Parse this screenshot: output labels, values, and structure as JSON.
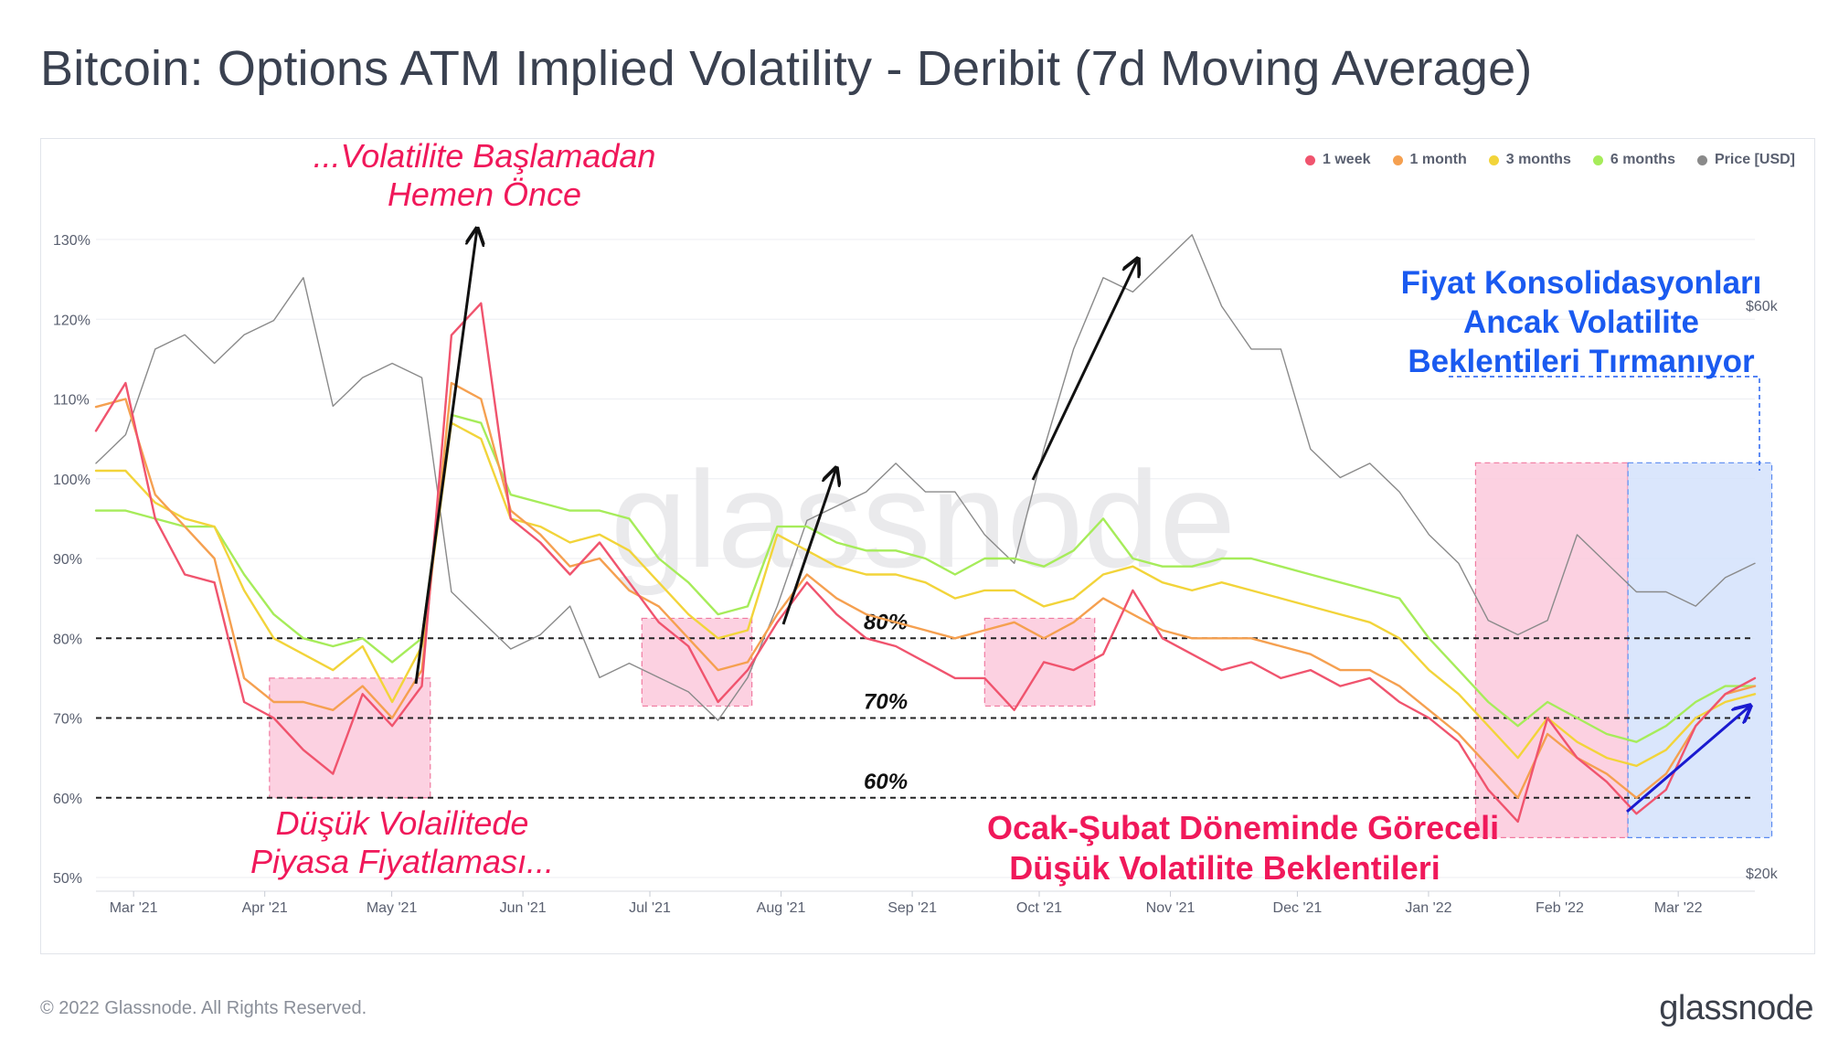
{
  "title": "Bitcoin: Options ATM Implied Volatility - Deribit (7d Moving Average)",
  "footer": {
    "copyright": "© 2022 Glassnode. All Rights Reserved.",
    "logo": "glassnode"
  },
  "watermark": "glassnode",
  "legend": [
    {
      "label": "1 week",
      "color": "#f0546e"
    },
    {
      "label": "1 month",
      "color": "#f5a050"
    },
    {
      "label": "3 months",
      "color": "#f2d43a"
    },
    {
      "label": "6 months",
      "color": "#a6ec5a"
    },
    {
      "label": "Price [USD]",
      "color": "#8a8a8a"
    }
  ],
  "annotations": {
    "top": [
      "...Volatilite Başlamadan",
      "Hemen Önce"
    ],
    "bottom_left": [
      "Düşük Volailitede",
      "Piyasa Fiyatlaması..."
    ],
    "bottom_right": [
      "Ocak-Şubat Döneminde Göreceli",
      "Düşük Volatilite Beklentileri"
    ],
    "top_right": [
      "Fiyat Konsolidasyonları",
      "Ancak Volatilite",
      "Beklentileri Tırmanıyor"
    ],
    "level_labels": [
      "80%",
      "70%",
      "60%"
    ]
  },
  "chart_data": {
    "type": "line",
    "x_ticks": [
      "Mar '21",
      "Apr '21",
      "May '21",
      "Jun '21",
      "Jul '21",
      "Aug '21",
      "Sep '21",
      "Oct '21",
      "Nov '21",
      "Dec '21",
      "Jan '22",
      "Feb '22",
      "Mar '22"
    ],
    "y_left_ticks": [
      "50%",
      "60%",
      "70%",
      "80%",
      "90%",
      "100%",
      "110%",
      "120%",
      "130%"
    ],
    "y_left_range": [
      50,
      130
    ],
    "y_right_ticks": [
      "$20k",
      "$60k"
    ],
    "reference_levels": [
      80,
      70,
      60
    ],
    "dates": [
      "2021-02-24",
      "2021-03-03",
      "2021-03-10",
      "2021-03-17",
      "2021-03-24",
      "2021-03-31",
      "2021-04-07",
      "2021-04-14",
      "2021-04-21",
      "2021-04-28",
      "2021-05-05",
      "2021-05-12",
      "2021-05-19",
      "2021-05-26",
      "2021-06-02",
      "2021-06-09",
      "2021-06-16",
      "2021-06-23",
      "2021-06-30",
      "2021-07-07",
      "2021-07-14",
      "2021-07-21",
      "2021-07-28",
      "2021-08-04",
      "2021-08-11",
      "2021-08-18",
      "2021-08-25",
      "2021-09-01",
      "2021-09-08",
      "2021-09-15",
      "2021-09-22",
      "2021-09-29",
      "2021-10-06",
      "2021-10-13",
      "2021-10-20",
      "2021-10-27",
      "2021-11-03",
      "2021-11-10",
      "2021-11-17",
      "2021-11-24",
      "2021-12-01",
      "2021-12-08",
      "2021-12-15",
      "2021-12-22",
      "2021-12-29",
      "2022-01-05",
      "2022-01-12",
      "2022-01-19",
      "2022-01-26",
      "2022-02-02",
      "2022-02-09",
      "2022-02-16",
      "2022-02-23",
      "2022-03-02",
      "2022-03-09",
      "2022-03-16",
      "2022-03-23"
    ],
    "series": [
      {
        "name": "1 week",
        "values": [
          106,
          112,
          95,
          88,
          87,
          72,
          70,
          66,
          63,
          73,
          69,
          74,
          118,
          122,
          95,
          92,
          88,
          92,
          87,
          82,
          79,
          72,
          76,
          82,
          87,
          83,
          80,
          79,
          77,
          75,
          75,
          71,
          77,
          76,
          78,
          86,
          80,
          78,
          76,
          77,
          75,
          76,
          74,
          75,
          72,
          70,
          67,
          61,
          57,
          70,
          65,
          62,
          58,
          61,
          69,
          73,
          75
        ]
      },
      {
        "name": "1 month",
        "values": [
          109,
          110,
          98,
          94,
          90,
          75,
          72,
          72,
          71,
          74,
          70,
          76,
          112,
          110,
          96,
          93,
          89,
          90,
          86,
          84,
          80,
          76,
          77,
          83,
          88,
          85,
          83,
          82,
          81,
          80,
          81,
          82,
          80,
          82,
          85,
          83,
          81,
          80,
          80,
          80,
          79,
          78,
          76,
          76,
          74,
          71,
          68,
          64,
          60,
          68,
          65,
          63,
          60,
          63,
          69,
          73,
          74
        ]
      },
      {
        "name": "3 months",
        "values": [
          101,
          101,
          97,
          95,
          94,
          86,
          80,
          78,
          76,
          79,
          72,
          79,
          107,
          105,
          95,
          94,
          92,
          93,
          91,
          87,
          83,
          80,
          81,
          93,
          91,
          89,
          88,
          88,
          87,
          85,
          86,
          86,
          84,
          85,
          88,
          89,
          87,
          86,
          87,
          86,
          85,
          84,
          83,
          82,
          80,
          76,
          73,
          69,
          65,
          70,
          67,
          65,
          64,
          66,
          70,
          72,
          73
        ]
      },
      {
        "name": "6 months",
        "values": [
          96,
          96,
          95,
          94,
          94,
          88,
          83,
          80,
          79,
          80,
          77,
          80,
          108,
          107,
          98,
          97,
          96,
          96,
          95,
          90,
          87,
          83,
          84,
          94,
          94,
          92,
          91,
          91,
          90,
          88,
          90,
          90,
          89,
          91,
          95,
          90,
          89,
          89,
          90,
          90,
          89,
          88,
          87,
          86,
          85,
          80,
          76,
          72,
          69,
          72,
          70,
          68,
          67,
          69,
          72,
          74,
          74
        ]
      },
      {
        "name": "Price [USD]",
        "values": [
          49,
          51,
          57,
          58,
          56,
          58,
          59,
          62,
          53,
          55,
          56,
          55,
          40,
          38,
          36,
          37,
          39,
          34,
          35,
          34,
          33,
          31,
          34,
          39,
          45,
          46,
          47,
          49,
          47,
          47,
          44,
          42,
          50,
          57,
          62,
          61,
          63,
          65,
          60,
          57,
          57,
          50,
          48,
          49,
          47,
          44,
          42,
          38,
          37,
          38,
          44,
          42,
          40,
          40,
          39,
          41,
          42
        ]
      }
    ]
  }
}
